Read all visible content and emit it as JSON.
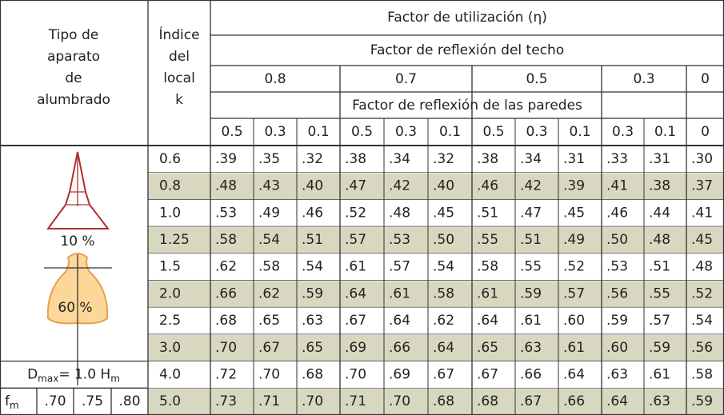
{
  "header": {
    "lamp_type": [
      "Tipo de",
      "aparato",
      "de",
      "alumbrado"
    ],
    "index": [
      "Índice",
      "del",
      "local",
      "k"
    ],
    "title": "Factor de utilización (η)",
    "ceiling": "Factor de reflexión del techo",
    "ceiling_values": [
      "0.8",
      "0.7",
      "0.5",
      "0.3",
      "0"
    ],
    "wall": "Factor de reflexión de las paredes",
    "wall_values": [
      "0.5",
      "0.3",
      "0.1",
      "0.5",
      "0.3",
      "0.1",
      "0.5",
      "0.3",
      "0.1",
      "0.3",
      "0.1",
      "0"
    ]
  },
  "lamp": {
    "upper": "10 %",
    "lower": "60 %",
    "dmax": [
      "D",
      "max",
      "= 1.0 H",
      "m"
    ],
    "fm": [
      "f",
      "m"
    ],
    "fm_values": [
      ".70",
      ".75",
      ".80"
    ]
  },
  "table": {
    "rows": [
      {
        "k": "0.6",
        "values": [
          ".39",
          ".35",
          ".32",
          ".38",
          ".34",
          ".32",
          ".38",
          ".34",
          ".31",
          ".33",
          ".31",
          ".30"
        ]
      },
      {
        "k": "0.8",
        "values": [
          ".48",
          ".43",
          ".40",
          ".47",
          ".42",
          ".40",
          ".46",
          ".42",
          ".39",
          ".41",
          ".38",
          ".37"
        ]
      },
      {
        "k": "1.0",
        "values": [
          ".53",
          ".49",
          ".46",
          ".52",
          ".48",
          ".45",
          ".51",
          ".47",
          ".45",
          ".46",
          ".44",
          ".41"
        ]
      },
      {
        "k": "1.25",
        "values": [
          ".58",
          ".54",
          ".51",
          ".57",
          ".53",
          ".50",
          ".55",
          ".51",
          ".49",
          ".50",
          ".48",
          ".45"
        ]
      },
      {
        "k": "1.5",
        "values": [
          ".62",
          ".58",
          ".54",
          ".61",
          ".57",
          ".54",
          ".58",
          ".55",
          ".52",
          ".53",
          ".51",
          ".48"
        ]
      },
      {
        "k": "2.0",
        "values": [
          ".66",
          ".62",
          ".59",
          ".64",
          ".61",
          ".58",
          ".61",
          ".59",
          ".57",
          ".56",
          ".55",
          ".52"
        ]
      },
      {
        "k": "2.5",
        "values": [
          ".68",
          ".65",
          ".63",
          ".67",
          ".64",
          ".62",
          ".64",
          ".61",
          ".60",
          ".59",
          ".57",
          ".54"
        ]
      },
      {
        "k": "3.0",
        "values": [
          ".70",
          ".67",
          ".65",
          ".69",
          ".66",
          ".64",
          ".65",
          ".63",
          ".61",
          ".60",
          ".59",
          ".56"
        ]
      },
      {
        "k": "4.0",
        "values": [
          ".72",
          ".70",
          ".68",
          ".70",
          ".69",
          ".67",
          ".67",
          ".66",
          ".64",
          ".63",
          ".61",
          ".58"
        ]
      },
      {
        "k": "5.0",
        "values": [
          ".73",
          ".71",
          ".70",
          ".71",
          ".70",
          ".68",
          ".68",
          ".67",
          ".66",
          ".64",
          ".63",
          ".59"
        ]
      }
    ]
  }
}
